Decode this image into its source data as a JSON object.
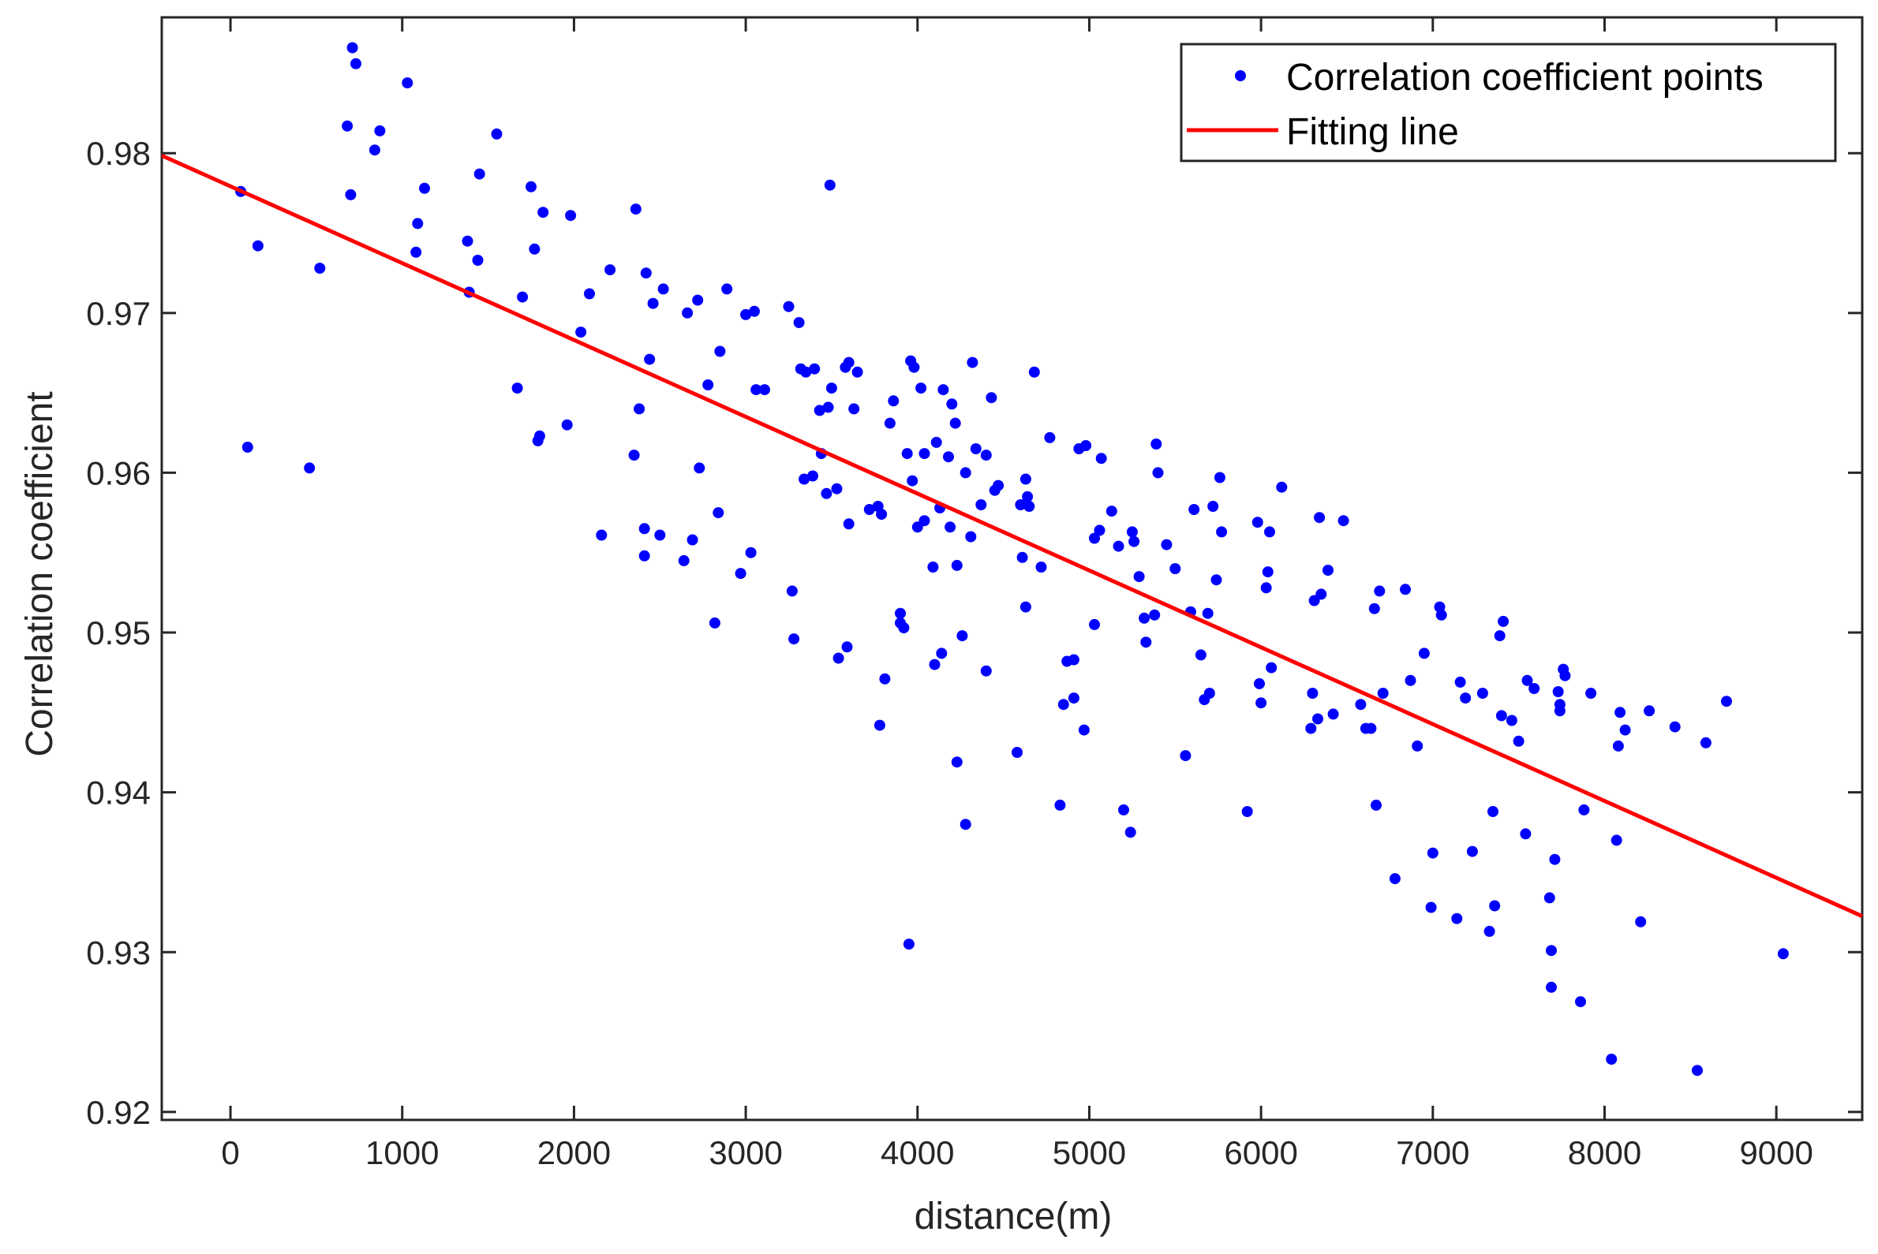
{
  "chart_data": {
    "type": "scatter",
    "title": "",
    "xlabel": "distance(m)",
    "ylabel": "Correlation coefficient",
    "xlim": [
      -400,
      9500
    ],
    "ylim": [
      0.9195,
      0.9885
    ],
    "xticks": [
      0,
      1000,
      2000,
      3000,
      4000,
      5000,
      6000,
      7000,
      8000,
      9000
    ],
    "yticks": [
      0.92,
      0.93,
      0.94,
      0.95,
      0.96,
      0.97,
      0.98
    ],
    "ytick_labels": [
      "0.92",
      "0.93",
      "0.94",
      "0.95",
      "0.96",
      "0.97",
      "0.98"
    ],
    "grid": false,
    "legend_position": "top-right",
    "colors": {
      "points": "#0000ff",
      "line": "#ff0000",
      "axis": "#262626",
      "background": "#ffffff"
    },
    "series": [
      {
        "name": "Correlation coefficient points",
        "type": "scatter",
        "points": [
          [
            60,
            0.9776
          ],
          [
            100,
            0.9616
          ],
          [
            160,
            0.9742
          ],
          [
            460,
            0.9603
          ],
          [
            520,
            0.9728
          ],
          [
            680,
            0.9817
          ],
          [
            700,
            0.9774
          ],
          [
            710,
            0.9866
          ],
          [
            730,
            0.9856
          ],
          [
            840,
            0.9802
          ],
          [
            870,
            0.9814
          ],
          [
            1030,
            0.9844
          ],
          [
            1080,
            0.9738
          ],
          [
            1090,
            0.9756
          ],
          [
            1130,
            0.9778
          ],
          [
            1380,
            0.9745
          ],
          [
            1390,
            0.9713
          ],
          [
            1440,
            0.9733
          ],
          [
            1450,
            0.9787
          ],
          [
            1550,
            0.9812
          ],
          [
            1670,
            0.9653
          ],
          [
            1700,
            0.971
          ],
          [
            1750,
            0.9779
          ],
          [
            1770,
            0.974
          ],
          [
            1790,
            0.962
          ],
          [
            1800,
            0.9623
          ],
          [
            1820,
            0.9763
          ],
          [
            1960,
            0.963
          ],
          [
            1980,
            0.9761
          ],
          [
            2040,
            0.9688
          ],
          [
            2090,
            0.9712
          ],
          [
            2160,
            0.9561
          ],
          [
            2210,
            0.9727
          ],
          [
            2350,
            0.9611
          ],
          [
            2360,
            0.9765
          ],
          [
            2380,
            0.964
          ],
          [
            2410,
            0.9565
          ],
          [
            2410,
            0.9548
          ],
          [
            2420,
            0.9725
          ],
          [
            2440,
            0.9671
          ],
          [
            2460,
            0.9706
          ],
          [
            2500,
            0.9561
          ],
          [
            2520,
            0.9715
          ],
          [
            2640,
            0.9545
          ],
          [
            2660,
            0.97
          ],
          [
            2690,
            0.9558
          ],
          [
            2720,
            0.9708
          ],
          [
            2730,
            0.9603
          ],
          [
            2780,
            0.9655
          ],
          [
            2820,
            0.9506
          ],
          [
            2840,
            0.9575
          ],
          [
            2850,
            0.9676
          ],
          [
            2890,
            0.9715
          ],
          [
            2970,
            0.9537
          ],
          [
            3000,
            0.9699
          ],
          [
            3030,
            0.955
          ],
          [
            3050,
            0.9701
          ],
          [
            3060,
            0.9652
          ],
          [
            3110,
            0.9652
          ],
          [
            3250,
            0.9704
          ],
          [
            3270,
            0.9526
          ],
          [
            3280,
            0.9496
          ],
          [
            3310,
            0.9694
          ],
          [
            3320,
            0.9665
          ],
          [
            3340,
            0.9596
          ],
          [
            3350,
            0.9663
          ],
          [
            3390,
            0.9598
          ],
          [
            3400,
            0.9665
          ],
          [
            3430,
            0.9639
          ],
          [
            3440,
            0.9612
          ],
          [
            3470,
            0.9587
          ],
          [
            3480,
            0.9641
          ],
          [
            3490,
            0.978
          ],
          [
            3500,
            0.9653
          ],
          [
            3530,
            0.959
          ],
          [
            3540,
            0.9484
          ],
          [
            3580,
            0.9666
          ],
          [
            3590,
            0.9491
          ],
          [
            3600,
            0.9669
          ],
          [
            3600,
            0.9568
          ],
          [
            3630,
            0.964
          ],
          [
            3650,
            0.9663
          ],
          [
            3720,
            0.9577
          ],
          [
            3770,
            0.9579
          ],
          [
            3780,
            0.9442
          ],
          [
            3790,
            0.9574
          ],
          [
            3810,
            0.9471
          ],
          [
            3840,
            0.9631
          ],
          [
            3860,
            0.9645
          ],
          [
            3900,
            0.9506
          ],
          [
            3900,
            0.9512
          ],
          [
            3920,
            0.9503
          ],
          [
            3940,
            0.9612
          ],
          [
            3950,
            0.9305
          ],
          [
            3960,
            0.967
          ],
          [
            3970,
            0.9595
          ],
          [
            3980,
            0.9666
          ],
          [
            4000,
            0.9566
          ],
          [
            4020,
            0.9653
          ],
          [
            4040,
            0.957
          ],
          [
            4040,
            0.9612
          ],
          [
            4090,
            0.9541
          ],
          [
            4100,
            0.948
          ],
          [
            4110,
            0.9619
          ],
          [
            4130,
            0.9578
          ],
          [
            4140,
            0.9487
          ],
          [
            4150,
            0.9652
          ],
          [
            4180,
            0.961
          ],
          [
            4190,
            0.9566
          ],
          [
            4200,
            0.9643
          ],
          [
            4220,
            0.9631
          ],
          [
            4230,
            0.9542
          ],
          [
            4230,
            0.9419
          ],
          [
            4260,
            0.9498
          ],
          [
            4280,
            0.96
          ],
          [
            4280,
            0.938
          ],
          [
            4310,
            0.956
          ],
          [
            4320,
            0.9669
          ],
          [
            4340,
            0.9615
          ],
          [
            4370,
            0.958
          ],
          [
            4400,
            0.9476
          ],
          [
            4400,
            0.9611
          ],
          [
            4430,
            0.9647
          ],
          [
            4450,
            0.9589
          ],
          [
            4470,
            0.9592
          ],
          [
            4580,
            0.9425
          ],
          [
            4600,
            0.958
          ],
          [
            4610,
            0.9547
          ],
          [
            4630,
            0.9596
          ],
          [
            4630,
            0.9516
          ],
          [
            4640,
            0.9585
          ],
          [
            4650,
            0.9579
          ],
          [
            4680,
            0.9663
          ],
          [
            4720,
            0.9541
          ],
          [
            4770,
            0.9622
          ],
          [
            4830,
            0.9392
          ],
          [
            4850,
            0.9455
          ],
          [
            4870,
            0.9482
          ],
          [
            4910,
            0.9459
          ],
          [
            4910,
            0.9483
          ],
          [
            4940,
            0.9615
          ],
          [
            4970,
            0.9439
          ],
          [
            4980,
            0.9617
          ],
          [
            5030,
            0.9505
          ],
          [
            5030,
            0.9559
          ],
          [
            5060,
            0.9564
          ],
          [
            5070,
            0.9609
          ],
          [
            5130,
            0.9576
          ],
          [
            5170,
            0.9554
          ],
          [
            5200,
            0.9389
          ],
          [
            5240,
            0.9375
          ],
          [
            5250,
            0.9563
          ],
          [
            5260,
            0.9557
          ],
          [
            5290,
            0.9535
          ],
          [
            5320,
            0.9509
          ],
          [
            5330,
            0.9494
          ],
          [
            5380,
            0.9511
          ],
          [
            5390,
            0.9618
          ],
          [
            5400,
            0.96
          ],
          [
            5450,
            0.9555
          ],
          [
            5500,
            0.954
          ],
          [
            5560,
            0.9423
          ],
          [
            5590,
            0.9513
          ],
          [
            5610,
            0.9577
          ],
          [
            5650,
            0.9486
          ],
          [
            5670,
            0.9458
          ],
          [
            5690,
            0.9512
          ],
          [
            5700,
            0.9462
          ],
          [
            5720,
            0.9579
          ],
          [
            5740,
            0.9533
          ],
          [
            5760,
            0.9597
          ],
          [
            5770,
            0.9563
          ],
          [
            5920,
            0.9388
          ],
          [
            5980,
            0.9569
          ],
          [
            5990,
            0.9468
          ],
          [
            6000,
            0.9456
          ],
          [
            6030,
            0.9528
          ],
          [
            6040,
            0.9538
          ],
          [
            6050,
            0.9563
          ],
          [
            6060,
            0.9478
          ],
          [
            6120,
            0.9591
          ],
          [
            6290,
            0.944
          ],
          [
            6300,
            0.9462
          ],
          [
            6310,
            0.952
          ],
          [
            6330,
            0.9446
          ],
          [
            6340,
            0.9572
          ],
          [
            6350,
            0.9524
          ],
          [
            6390,
            0.9539
          ],
          [
            6420,
            0.9449
          ],
          [
            6480,
            0.957
          ],
          [
            6580,
            0.9455
          ],
          [
            6610,
            0.944
          ],
          [
            6640,
            0.944
          ],
          [
            6660,
            0.9515
          ],
          [
            6670,
            0.9392
          ],
          [
            6690,
            0.9526
          ],
          [
            6710,
            0.9462
          ],
          [
            6780,
            0.9346
          ],
          [
            6840,
            0.9527
          ],
          [
            6870,
            0.947
          ],
          [
            6910,
            0.9429
          ],
          [
            6950,
            0.9487
          ],
          [
            6990,
            0.9328
          ],
          [
            7000,
            0.9362
          ],
          [
            7040,
            0.9516
          ],
          [
            7050,
            0.9511
          ],
          [
            7140,
            0.9321
          ],
          [
            7160,
            0.9469
          ],
          [
            7190,
            0.9459
          ],
          [
            7230,
            0.9363
          ],
          [
            7290,
            0.9462
          ],
          [
            7330,
            0.9313
          ],
          [
            7350,
            0.9388
          ],
          [
            7360,
            0.9329
          ],
          [
            7390,
            0.9498
          ],
          [
            7400,
            0.9448
          ],
          [
            7410,
            0.9507
          ],
          [
            7460,
            0.9445
          ],
          [
            7500,
            0.9432
          ],
          [
            7540,
            0.9374
          ],
          [
            7550,
            0.947
          ],
          [
            7590,
            0.9465
          ],
          [
            7680,
            0.9334
          ],
          [
            7690,
            0.9278
          ],
          [
            7690,
            0.9301
          ],
          [
            7710,
            0.9358
          ],
          [
            7730,
            0.9463
          ],
          [
            7740,
            0.9455
          ],
          [
            7740,
            0.9451
          ],
          [
            7760,
            0.9477
          ],
          [
            7770,
            0.9473
          ],
          [
            7860,
            0.9269
          ],
          [
            7880,
            0.9389
          ],
          [
            7920,
            0.9462
          ],
          [
            8040,
            0.9233
          ],
          [
            8070,
            0.937
          ],
          [
            8080,
            0.9429
          ],
          [
            8090,
            0.945
          ],
          [
            8120,
            0.9439
          ],
          [
            8210,
            0.9319
          ],
          [
            8260,
            0.9451
          ],
          [
            8410,
            0.9441
          ],
          [
            8540,
            0.9226
          ],
          [
            8590,
            0.9431
          ],
          [
            8710,
            0.9457
          ],
          [
            9040,
            0.9299
          ]
        ]
      },
      {
        "name": "Fitting line",
        "type": "line",
        "x": [
          -400,
          9500
        ],
        "y": [
          0.97985,
          0.93225
        ]
      }
    ]
  }
}
